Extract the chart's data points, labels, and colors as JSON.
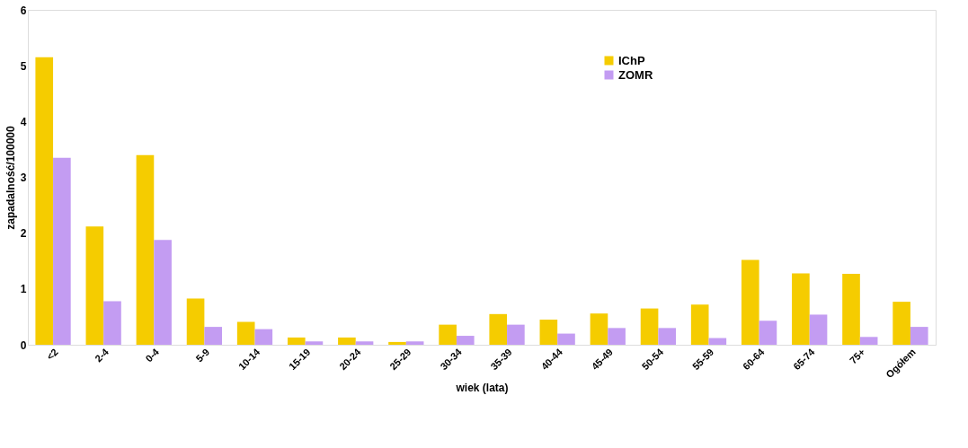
{
  "chart_data": {
    "type": "bar",
    "xlabel": "wiek (lata)",
    "ylabel": "zapadalność/100000",
    "categories": [
      "<2",
      "2-4",
      "0-4",
      "5-9",
      "10-14",
      "15-19",
      "20-24",
      "25-29",
      "30-34",
      "35-39",
      "40-44",
      "45-49",
      "50-54",
      "55-59",
      "60-64",
      "65-74",
      "75+",
      "Ogółem"
    ],
    "series": [
      {
        "name": "IChP",
        "color": "#f5cc00",
        "values": [
          5.15,
          2.12,
          3.4,
          0.83,
          0.41,
          0.13,
          0.13,
          0.05,
          0.36,
          0.55,
          0.45,
          0.56,
          0.65,
          0.72,
          1.52,
          1.28,
          1.27,
          0.77
        ]
      },
      {
        "name": "ZOMR",
        "color": "#c39cf2",
        "values": [
          3.35,
          0.78,
          1.88,
          0.32,
          0.28,
          0.06,
          0.06,
          0.06,
          0.16,
          0.36,
          0.2,
          0.3,
          0.3,
          0.12,
          0.43,
          0.54,
          0.14,
          0.32
        ]
      }
    ],
    "ylim": [
      0,
      6
    ],
    "yticks": [
      0,
      1,
      2,
      3,
      4,
      5,
      6
    ],
    "grid": false,
    "legend": "top"
  }
}
